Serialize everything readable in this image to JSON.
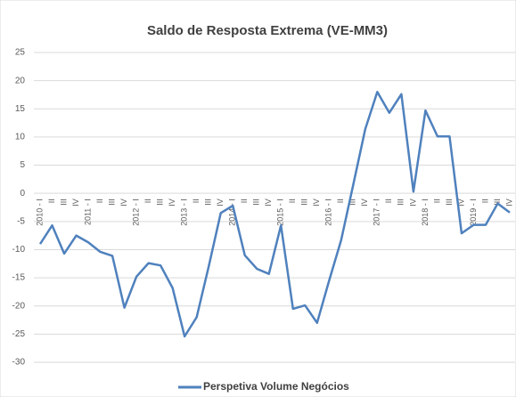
{
  "chart_data": {
    "type": "line",
    "title": "Saldo de Resposta Extrema (VE-MM3)",
    "categories": [
      "2010 - I",
      "II",
      "III",
      "IV",
      "2011 - I",
      "II",
      "III",
      "IV",
      "2012 - I",
      "II",
      "III",
      "IV",
      "2013 - I",
      "II",
      "III",
      "IV",
      "2014 - I",
      "II",
      "III",
      "IV",
      "2015 - I",
      "II",
      "III",
      "IV",
      "2016 - I",
      "II",
      "III",
      "IV",
      "2017 - I",
      "II",
      "III",
      "IV",
      "2018 - I",
      "II",
      "III",
      "IV",
      "2019 - I",
      "II",
      "III",
      "IV"
    ],
    "series": [
      {
        "name": "Perspetiva Volume  Negócios",
        "color": "#4f81bd",
        "values": [
          -9,
          -5.7,
          -10.7,
          -7.5,
          -8.7,
          -10.4,
          -11.1,
          -20.3,
          -14.8,
          -12.4,
          -12.8,
          -16.8,
          -25.4,
          -22,
          -13,
          -3.5,
          -2.2,
          -11,
          -13.4,
          -14.3,
          -5.7,
          -20.5,
          -19.9,
          -23,
          -15.5,
          -8.3,
          1.5,
          11.4,
          18,
          14.3,
          17.6,
          0.3,
          14.7,
          10.1,
          10.1,
          -7.1,
          -5.6,
          -5.6,
          -1.8,
          -3.4
        ]
      }
    ],
    "ylim": [
      -30,
      25
    ],
    "yticks": [
      -30,
      -25,
      -20,
      -15,
      -10,
      -5,
      0,
      5,
      10,
      15,
      20,
      25
    ],
    "grid": true,
    "legend": "bottom"
  }
}
